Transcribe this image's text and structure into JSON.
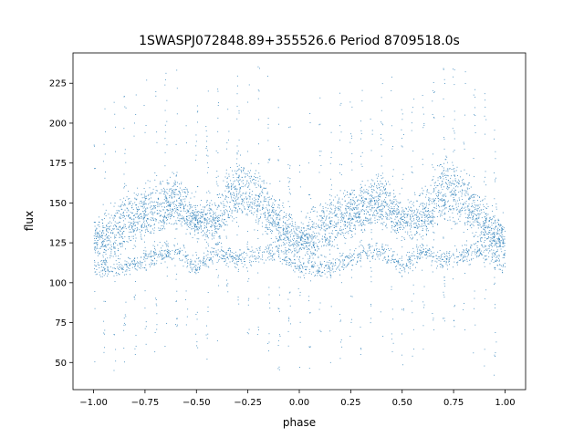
{
  "chart_data": {
    "type": "scatter",
    "title": "1SWASPJ072848.89+355526.6 Period 8709518.0s",
    "xlabel": "phase",
    "ylabel": "flux",
    "xlim": [
      -1.1,
      1.1
    ],
    "ylim": [
      33,
      244
    ],
    "xticks": [
      -1.0,
      -0.75,
      -0.5,
      -0.25,
      0.0,
      0.25,
      0.5,
      0.75,
      1.0
    ],
    "xtick_labels": [
      "−1.00",
      "−0.75",
      "−0.50",
      "−0.25",
      "0.00",
      "0.25",
      "0.50",
      "0.75",
      "1.00"
    ],
    "yticks": [
      50,
      75,
      100,
      125,
      150,
      175,
      200,
      225
    ],
    "ytick_labels": [
      "50",
      "75",
      "100",
      "125",
      "150",
      "175",
      "200",
      "225"
    ],
    "grid": false,
    "legend": "none",
    "color": "#1f77b4",
    "band_profile": {
      "description": "Phase-folded light curve; dense point bands (flux vs. phase), pattern repeats with period 1 in phase",
      "phase": [
        0.0,
        0.1,
        0.2,
        0.3,
        0.4,
        0.5,
        0.6,
        0.7,
        0.8,
        0.9
      ],
      "upper_band": [
        128,
        138,
        146,
        150,
        158,
        140,
        145,
        168,
        158,
        140
      ],
      "middle_band": [
        125,
        122,
        135,
        140,
        145,
        138,
        135,
        150,
        145,
        132
      ],
      "lower_band": [
        110,
        108,
        112,
        118,
        120,
        110,
        120,
        115,
        118,
        120
      ]
    }
  }
}
